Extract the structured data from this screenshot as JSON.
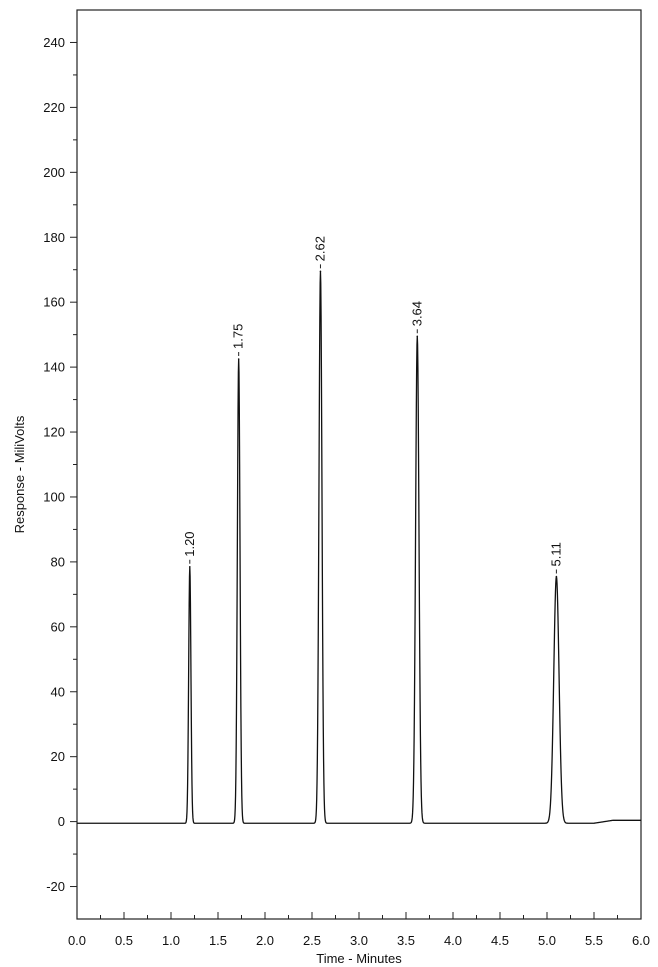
{
  "chart_data": {
    "type": "line",
    "title": "",
    "xlabel": "Time - Minutes",
    "ylabel": "Response - MiliVolts",
    "xlim": [
      0.0,
      6.0
    ],
    "ylim": [
      -30,
      250
    ],
    "xticks": [
      "0.0",
      "0.5",
      "1.0",
      "1.5",
      "2.0",
      "2.5",
      "3.0",
      "3.5",
      "4.0",
      "4.5",
      "5.0",
      "5.5",
      "6.0"
    ],
    "yticks": [
      "-20",
      "0",
      "20",
      "40",
      "60",
      "80",
      "100",
      "120",
      "140",
      "160",
      "180",
      "200",
      "220",
      "240"
    ],
    "grid": false,
    "legend": "none",
    "baseline_mv": -0.5,
    "peaks": [
      {
        "label": "1.20",
        "time": 1.2,
        "height": 79,
        "width": 0.012
      },
      {
        "label": "1.75",
        "time": 1.72,
        "height": 143,
        "width": 0.014
      },
      {
        "label": "2.62",
        "time": 2.59,
        "height": 170,
        "width": 0.016
      },
      {
        "label": "3.64",
        "time": 3.62,
        "height": 150,
        "width": 0.018
      },
      {
        "label": "5.11",
        "time": 5.1,
        "height": 76,
        "width": 0.028
      }
    ],
    "line_color": "#111111"
  }
}
